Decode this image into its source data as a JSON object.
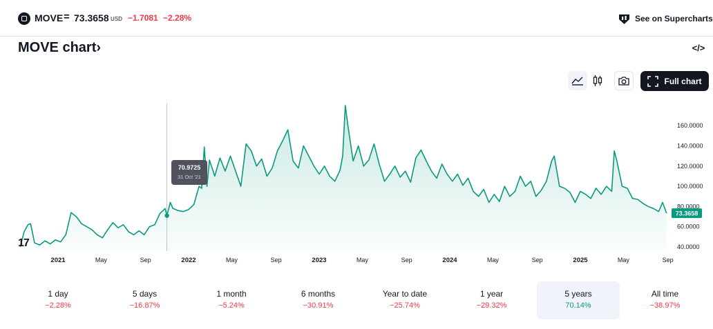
{
  "header": {
    "symbol": "MOVE",
    "equals": "=",
    "price": "73.3658",
    "currency": "USD",
    "change": "−1.7081",
    "change_pct": "−2.28%",
    "supercharts_label": "See on Supercharts"
  },
  "title": "MOVE chart›",
  "embed_label": "</>",
  "toolbar": {
    "area_icon": "area-chart-icon",
    "candle_icon": "candlestick-icon",
    "camera_icon": "camera-icon",
    "full_chart_label": "Full chart"
  },
  "tooltip": {
    "value": "70.9725",
    "date": "31 Oct '21"
  },
  "tv_logo": "17",
  "chart_data": {
    "type": "area",
    "y_ticks": [
      "160.0000",
      "140.0000",
      "120.0000",
      "100.0000",
      "80.0000",
      "60.0000",
      "40.0000"
    ],
    "y_tick_values": [
      160,
      140,
      120,
      100,
      80,
      60,
      40
    ],
    "ylim": [
      38,
      180
    ],
    "x_ticks": [
      {
        "label": "2021",
        "t": 2021.0
      },
      {
        "label": "May",
        "t": 2021.33
      },
      {
        "label": "Sep",
        "t": 2021.67
      },
      {
        "label": "2022",
        "t": 2022.0
      },
      {
        "label": "May",
        "t": 2022.33
      },
      {
        "label": "Sep",
        "t": 2022.67
      },
      {
        "label": "2023",
        "t": 2023.0
      },
      {
        "label": "May",
        "t": 2023.33
      },
      {
        "label": "Sep",
        "t": 2023.67
      },
      {
        "label": "2024",
        "t": 2024.0
      },
      {
        "label": "May",
        "t": 2024.33
      },
      {
        "label": "Sep",
        "t": 2024.67
      },
      {
        "label": "2025",
        "t": 2025.0
      },
      {
        "label": "May",
        "t": 2025.33
      },
      {
        "label": "Sep",
        "t": 2025.67
      }
    ],
    "last_value": "73.3658",
    "series": [
      {
        "values": [
          [
            2020.71,
            40
          ],
          [
            2020.74,
            55
          ],
          [
            2020.77,
            62
          ],
          [
            2020.79,
            63
          ],
          [
            2020.82,
            44
          ],
          [
            2020.86,
            42
          ],
          [
            2020.9,
            46
          ],
          [
            2020.94,
            43
          ],
          [
            2020.98,
            47
          ],
          [
            2021.02,
            45
          ],
          [
            2021.06,
            52
          ],
          [
            2021.1,
            74
          ],
          [
            2021.14,
            70
          ],
          [
            2021.18,
            63
          ],
          [
            2021.22,
            60
          ],
          [
            2021.26,
            57
          ],
          [
            2021.3,
            52
          ],
          [
            2021.34,
            49
          ],
          [
            2021.38,
            57
          ],
          [
            2021.42,
            64
          ],
          [
            2021.46,
            59
          ],
          [
            2021.5,
            62
          ],
          [
            2021.54,
            55
          ],
          [
            2021.58,
            52
          ],
          [
            2021.62,
            56
          ],
          [
            2021.66,
            52
          ],
          [
            2021.7,
            60
          ],
          [
            2021.74,
            62
          ],
          [
            2021.78,
            73
          ],
          [
            2021.82,
            78
          ],
          [
            2021.834,
            70.97
          ],
          [
            2021.86,
            84
          ],
          [
            2021.88,
            78
          ],
          [
            2021.92,
            76
          ],
          [
            2021.96,
            75
          ],
          [
            2022.0,
            77
          ],
          [
            2022.04,
            82
          ],
          [
            2022.08,
            100
          ],
          [
            2022.1,
            98
          ],
          [
            2022.12,
            139
          ],
          [
            2022.14,
            100
          ],
          [
            2022.16,
            126
          ],
          [
            2022.2,
            110
          ],
          [
            2022.24,
            128
          ],
          [
            2022.28,
            115
          ],
          [
            2022.32,
            130
          ],
          [
            2022.36,
            115
          ],
          [
            2022.4,
            100
          ],
          [
            2022.44,
            142
          ],
          [
            2022.48,
            135
          ],
          [
            2022.52,
            120
          ],
          [
            2022.56,
            127
          ],
          [
            2022.6,
            110
          ],
          [
            2022.64,
            118
          ],
          [
            2022.68,
            135
          ],
          [
            2022.72,
            145
          ],
          [
            2022.76,
            156
          ],
          [
            2022.8,
            125
          ],
          [
            2022.84,
            118
          ],
          [
            2022.88,
            140
          ],
          [
            2022.92,
            130
          ],
          [
            2022.96,
            120
          ],
          [
            2023.0,
            112
          ],
          [
            2023.04,
            120
          ],
          [
            2023.08,
            110
          ],
          [
            2023.12,
            105
          ],
          [
            2023.16,
            116
          ],
          [
            2023.18,
            130
          ],
          [
            2023.2,
            180
          ],
          [
            2023.22,
            160
          ],
          [
            2023.26,
            125
          ],
          [
            2023.3,
            140
          ],
          [
            2023.34,
            120
          ],
          [
            2023.38,
            126
          ],
          [
            2023.42,
            142
          ],
          [
            2023.46,
            122
          ],
          [
            2023.5,
            105
          ],
          [
            2023.54,
            112
          ],
          [
            2023.58,
            120
          ],
          [
            2023.62,
            109
          ],
          [
            2023.66,
            115
          ],
          [
            2023.7,
            104
          ],
          [
            2023.74,
            128
          ],
          [
            2023.78,
            136
          ],
          [
            2023.82,
            125
          ],
          [
            2023.86,
            115
          ],
          [
            2023.9,
            108
          ],
          [
            2023.94,
            122
          ],
          [
            2023.98,
            112
          ],
          [
            2024.02,
            105
          ],
          [
            2024.06,
            112
          ],
          [
            2024.1,
            101
          ],
          [
            2024.14,
            108
          ],
          [
            2024.18,
            95
          ],
          [
            2024.22,
            90
          ],
          [
            2024.26,
            97
          ],
          [
            2024.3,
            84
          ],
          [
            2024.34,
            92
          ],
          [
            2024.38,
            85
          ],
          [
            2024.42,
            100
          ],
          [
            2024.46,
            90
          ],
          [
            2024.5,
            95
          ],
          [
            2024.54,
            110
          ],
          [
            2024.58,
            100
          ],
          [
            2024.62,
            105
          ],
          [
            2024.66,
            90
          ],
          [
            2024.7,
            96
          ],
          [
            2024.74,
            105
          ],
          [
            2024.78,
            125
          ],
          [
            2024.8,
            130
          ],
          [
            2024.84,
            100
          ],
          [
            2024.88,
            98
          ],
          [
            2024.92,
            94
          ],
          [
            2024.96,
            84
          ],
          [
            2025.0,
            95
          ],
          [
            2025.04,
            92
          ],
          [
            2025.08,
            88
          ],
          [
            2025.12,
            98
          ],
          [
            2025.16,
            92
          ],
          [
            2025.2,
            100
          ],
          [
            2025.24,
            95
          ],
          [
            2025.26,
            135
          ],
          [
            2025.28,
            125
          ],
          [
            2025.32,
            100
          ],
          [
            2025.36,
            98
          ],
          [
            2025.4,
            88
          ],
          [
            2025.44,
            87
          ],
          [
            2025.48,
            83
          ],
          [
            2025.52,
            80
          ],
          [
            2025.56,
            78
          ],
          [
            2025.6,
            75
          ],
          [
            2025.63,
            84
          ],
          [
            2025.66,
            73.3658
          ]
        ]
      }
    ]
  },
  "ranges": [
    {
      "label": "1 day",
      "value": "−2.28%",
      "sign": "neg"
    },
    {
      "label": "5 days",
      "value": "−16.87%",
      "sign": "neg"
    },
    {
      "label": "1 month",
      "value": "−5.24%",
      "sign": "neg"
    },
    {
      "label": "6 months",
      "value": "−30.91%",
      "sign": "neg"
    },
    {
      "label": "Year to date",
      "value": "−25.74%",
      "sign": "neg"
    },
    {
      "label": "1 year",
      "value": "−29.32%",
      "sign": "neg"
    },
    {
      "label": "5 years",
      "value": "70.14%",
      "sign": "pos",
      "active": true
    },
    {
      "label": "All time",
      "value": "−38.97%",
      "sign": "neg"
    }
  ],
  "colors": {
    "line": "#089981",
    "negative": "#f23645",
    "positive": "#089981",
    "dark": "#131722"
  }
}
